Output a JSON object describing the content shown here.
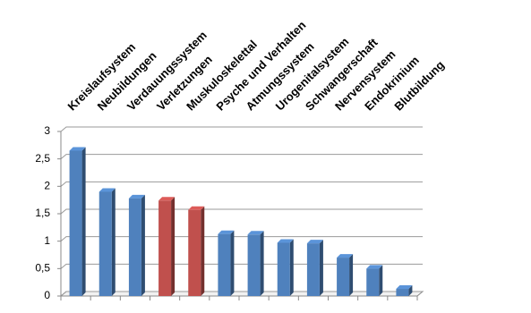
{
  "chart_data": {
    "type": "bar3d",
    "categories": [
      "Kreislaufsystem",
      "Neubildungen",
      "Verdauungssystem",
      "Verletzungen",
      "Muskuloskelettal",
      "Psyche und Verhalten",
      "Atmungssystem",
      "Urogenitalsystem",
      "Schwangerschaft",
      "Nervensystem",
      "Endokrinium",
      "Blutbildung"
    ],
    "values": [
      2.65,
      1.9,
      1.78,
      1.74,
      1.57,
      1.13,
      1.12,
      0.97,
      0.96,
      0.7,
      0.5,
      0.13
    ],
    "colors": [
      "#4f81bd",
      "#4f81bd",
      "#4f81bd",
      "#c0504d",
      "#c0504d",
      "#4f81bd",
      "#4f81bd",
      "#4f81bd",
      "#4f81bd",
      "#4f81bd",
      "#4f81bd",
      "#4f81bd"
    ],
    "ylim": [
      0,
      3
    ],
    "yticks": [
      0,
      {
        "value": 0.5,
        "label": "0,5"
      },
      1,
      {
        "value": 1.5,
        "label": "1,5"
      },
      2,
      {
        "value": 2.5,
        "label": "2,5"
      },
      3
    ],
    "grid": true
  }
}
